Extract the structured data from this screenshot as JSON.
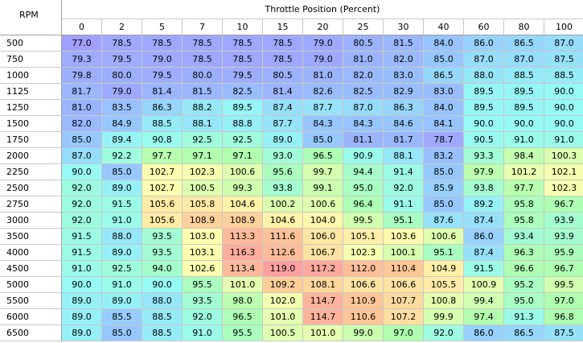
{
  "table": {
    "corner_label": "RPM",
    "column_title": "Throttle Position (Percent)",
    "columns": [
      "0",
      "2",
      "5",
      "7",
      "10",
      "15",
      "20",
      "25",
      "30",
      "40",
      "60",
      "80",
      "100"
    ],
    "rows": [
      {
        "rpm": "500",
        "values": [
          "77.0",
          "78.5",
          "78.5",
          "78.5",
          "78.5",
          "78.5",
          "79.0",
          "80.5",
          "81.5",
          "84.0",
          "86.0",
          "86.5",
          "87.0"
        ]
      },
      {
        "rpm": "750",
        "values": [
          "79.3",
          "79.5",
          "79.0",
          "78.5",
          "78.5",
          "78.5",
          "79.0",
          "81.0",
          "82.0",
          "85.0",
          "87.0",
          "87.0",
          "87.5"
        ]
      },
      {
        "rpm": "1000",
        "values": [
          "79.8",
          "80.0",
          "79.5",
          "80.0",
          "79.5",
          "80.5",
          "81.0",
          "82.0",
          "83.0",
          "86.5",
          "88.0",
          "88.5",
          "88.5"
        ]
      },
      {
        "rpm": "1125",
        "values": [
          "81.7",
          "79.0",
          "81.4",
          "81.5",
          "82.5",
          "81.4",
          "82.6",
          "82.5",
          "82.9",
          "83.0",
          "89.5",
          "89.5",
          "90.0"
        ]
      },
      {
        "rpm": "1250",
        "values": [
          "81.0",
          "83.5",
          "86.3",
          "88.2",
          "89.5",
          "87.4",
          "87.7",
          "87.0",
          "86.3",
          "84.0",
          "89.5",
          "89.5",
          "90.0"
        ]
      },
      {
        "rpm": "1500",
        "values": [
          "82.0",
          "84.9",
          "88.5",
          "88.1",
          "88.8",
          "87.7",
          "84.3",
          "84.3",
          "84.6",
          "84.1",
          "90.0",
          "90.0",
          "90.0"
        ]
      },
      {
        "rpm": "1750",
        "values": [
          "85.0",
          "89.4",
          "90.8",
          "92.5",
          "92.5",
          "89.0",
          "85.0",
          "81.1",
          "81.7",
          "78.7",
          "90.5",
          "91.0",
          "91.0"
        ]
      },
      {
        "rpm": "2000",
        "values": [
          "87.0",
          "92.2",
          "97.7",
          "97.1",
          "97.1",
          "93.0",
          "96.5",
          "90.9",
          "88.1",
          "83.2",
          "93.3",
          "98.4",
          "100.3"
        ]
      },
      {
        "rpm": "2250",
        "values": [
          "90.0",
          "85.0",
          "102.7",
          "102.3",
          "100.6",
          "95.6",
          "99.7",
          "94.4",
          "91.4",
          "85.0",
          "97.9",
          "101.2",
          "102.1"
        ]
      },
      {
        "rpm": "2500",
        "values": [
          "92.0",
          "89.0",
          "102.7",
          "100.5",
          "99.3",
          "93.8",
          "99.1",
          "95.0",
          "92.0",
          "85.9",
          "93.8",
          "97.7",
          "102.3"
        ]
      },
      {
        "rpm": "2750",
        "values": [
          "92.0",
          "91.5",
          "105.6",
          "105.8",
          "104.6",
          "100.2",
          "100.6",
          "96.4",
          "91.1",
          "85.0",
          "89.2",
          "95.8",
          "96.7"
        ]
      },
      {
        "rpm": "3000",
        "values": [
          "92.0",
          "91.0",
          "105.6",
          "108.9",
          "108.9",
          "104.6",
          "104.0",
          "99.5",
          "95.1",
          "87.6",
          "87.4",
          "95.8",
          "93.9"
        ]
      },
      {
        "rpm": "3500",
        "values": [
          "91.5",
          "88.0",
          "93.5",
          "103.0",
          "113.3",
          "111.6",
          "106.0",
          "105.1",
          "103.6",
          "100.6",
          "86.0",
          "93.4",
          "93.9"
        ]
      },
      {
        "rpm": "4000",
        "values": [
          "91.5",
          "89.0",
          "93.5",
          "103.1",
          "116.3",
          "112.6",
          "106.7",
          "102.3",
          "100.1",
          "95.1",
          "87.4",
          "96.3",
          "95.9"
        ]
      },
      {
        "rpm": "4500",
        "values": [
          "91.0",
          "92.5",
          "94.0",
          "102.6",
          "113.4",
          "119.0",
          "117.2",
          "112.0",
          "110.4",
          "104.9",
          "91.5",
          "96.6",
          "96.7"
        ]
      },
      {
        "rpm": "5000",
        "values": [
          "90.0",
          "91.0",
          "90.0",
          "95.5",
          "101.0",
          "109.2",
          "108.1",
          "106.6",
          "106.6",
          "105.5",
          "100.9",
          "95.2",
          "99.5"
        ]
      },
      {
        "rpm": "5500",
        "values": [
          "89.0",
          "89.0",
          "88.0",
          "93.5",
          "98.0",
          "102.0",
          "114.7",
          "110.9",
          "107.7",
          "100.8",
          "99.4",
          "95.0",
          "97.0"
        ]
      },
      {
        "rpm": "6000",
        "values": [
          "89.0",
          "85.5",
          "88.5",
          "92.0",
          "96.5",
          "101.0",
          "114.7",
          "110.6",
          "107.2",
          "99.9",
          "97.4",
          "91.3",
          "96.8"
        ]
      },
      {
        "rpm": "6500",
        "values": [
          "89.0",
          "85.0",
          "88.5",
          "91.0",
          "95.5",
          "100.5",
          "101.0",
          "99.0",
          "97.0",
          "92.0",
          "86.0",
          "86.5",
          "87.5"
        ]
      }
    ]
  }
}
